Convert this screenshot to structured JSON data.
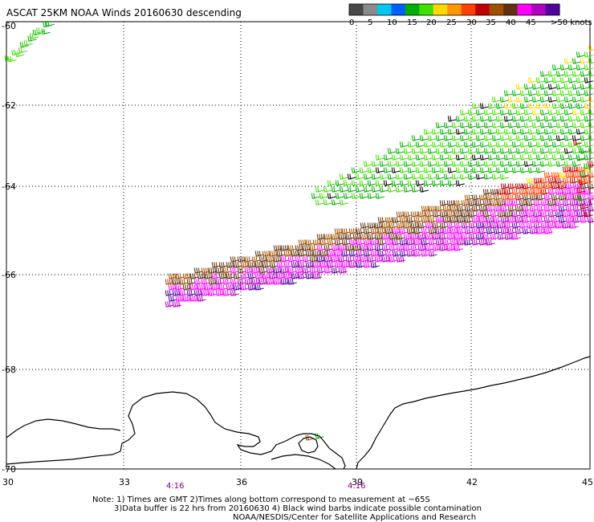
{
  "title": "ASCAT 25KM NOAA Winds 20160630 descending",
  "legend": {
    "labels": [
      "0",
      "5",
      "10",
      "15",
      "20",
      "25",
      "30",
      "35",
      "40",
      "45",
      ">50 knots"
    ],
    "colors": [
      "#484848",
      "#8a8a8a",
      "#00c8f0",
      "#0060ff",
      "#00b000",
      "#40e000",
      "#ffd800",
      "#ff9800",
      "#ff4000",
      "#c00000",
      "#a05000",
      "#603010",
      "#ff00ff",
      "#b000c0",
      "#5000a0"
    ]
  },
  "map": {
    "lon_range": [
      30,
      45
    ],
    "lat_range": [
      -70,
      -59.5
    ],
    "lon_ticks": [
      "30",
      "33",
      "36",
      "39",
      "42",
      "45"
    ],
    "lat_ticks": [
      "-60",
      "-62",
      "-64",
      "-66",
      "-68",
      "-70"
    ],
    "grid": true
  },
  "times": [
    "4:16",
    "4:16"
  ],
  "notes": [
    "Note: 1) Times are GMT 2)Times along bottom correspond to measurement at ~65S",
    "3)Data buffer is 22 hrs from 20160630 4) Black wind barbs indicate possible contamination",
    "NOAA/NESDIS/Center for Satellite Applications and Research"
  ]
}
